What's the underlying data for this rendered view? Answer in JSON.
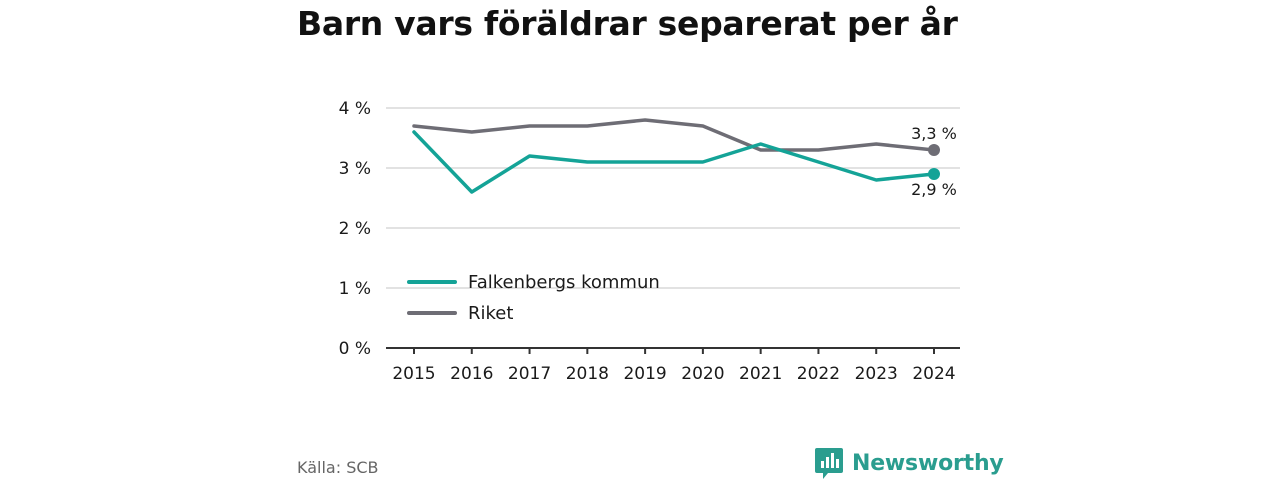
{
  "title": "Barn vars föräldrar separerat per år",
  "source": "Källa: SCB",
  "brand": {
    "name": "Newsworthy",
    "icon": "newsworthy-logo-icon",
    "color": "#2a9d8f"
  },
  "chart_data": {
    "type": "line",
    "x": [
      "2015",
      "2016",
      "2017",
      "2018",
      "2019",
      "2020",
      "2021",
      "2022",
      "2023",
      "2024"
    ],
    "series": [
      {
        "name": "Falkenbergs kommun",
        "color": "#14a397",
        "values": [
          3.6,
          2.6,
          3.2,
          3.1,
          3.1,
          3.1,
          3.4,
          3.1,
          2.8,
          2.9
        ],
        "end_label": "2,9 %"
      },
      {
        "name": "Riket",
        "color": "#6e6d75",
        "values": [
          3.7,
          3.6,
          3.7,
          3.7,
          3.8,
          3.7,
          3.3,
          3.3,
          3.4,
          3.3
        ],
        "end_label": "3,3 %"
      }
    ],
    "y_ticks": [
      0,
      1,
      2,
      3,
      4
    ],
    "y_tick_labels": [
      "0 %",
      "1 %",
      "2 %",
      "3 %",
      "4 %"
    ],
    "ylim": [
      0,
      4
    ],
    "grid": true,
    "legend_position": "bottom-left"
  }
}
